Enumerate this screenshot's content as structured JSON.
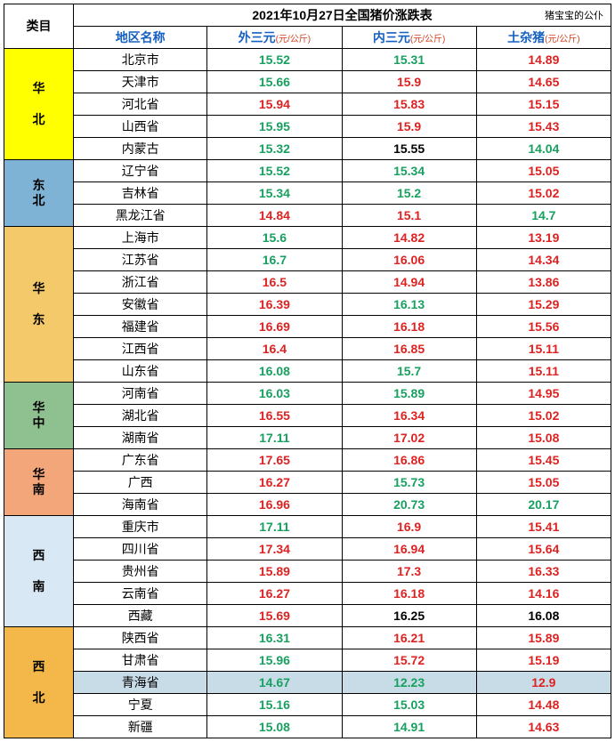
{
  "title": "2021年10月27日全国猪价涨跌表",
  "subtitle": "猪宝宝的公仆",
  "category_header": "类目",
  "columns": [
    "地区名称",
    "外三元",
    "内三元",
    "土杂猪"
  ],
  "unit": "(元/公斤)",
  "colors": {
    "up": "#d22",
    "down": "#18a060",
    "flat": "#000",
    "hdr_blue": "#1560c0"
  },
  "groups": [
    {
      "name": "华北",
      "bg": "#ffff00",
      "rows": [
        {
          "region": "北京市",
          "v": [
            [
              "15.52",
              "down"
            ],
            [
              "15.31",
              "down"
            ],
            [
              "14.89",
              "up"
            ]
          ]
        },
        {
          "region": "天津市",
          "v": [
            [
              "15.66",
              "down"
            ],
            [
              "15.9",
              "up"
            ],
            [
              "14.65",
              "up"
            ]
          ]
        },
        {
          "region": "河北省",
          "v": [
            [
              "15.94",
              "up"
            ],
            [
              "15.83",
              "up"
            ],
            [
              "15.15",
              "up"
            ]
          ]
        },
        {
          "region": "山西省",
          "v": [
            [
              "15.95",
              "down"
            ],
            [
              "15.9",
              "up"
            ],
            [
              "15.43",
              "up"
            ]
          ]
        },
        {
          "region": "内蒙古",
          "v": [
            [
              "15.32",
              "down"
            ],
            [
              "15.55",
              "flat"
            ],
            [
              "14.04",
              "down"
            ]
          ]
        }
      ]
    },
    {
      "name": "东北",
      "bg": "#7fb3d5",
      "rows": [
        {
          "region": "辽宁省",
          "v": [
            [
              "15.52",
              "down"
            ],
            [
              "15.34",
              "down"
            ],
            [
              "15.05",
              "up"
            ]
          ]
        },
        {
          "region": "吉林省",
          "v": [
            [
              "15.34",
              "down"
            ],
            [
              "15.2",
              "down"
            ],
            [
              "15.02",
              "up"
            ]
          ]
        },
        {
          "region": "黑龙江省",
          "v": [
            [
              "14.84",
              "up"
            ],
            [
              "15.1",
              "up"
            ],
            [
              "14.7",
              "down"
            ]
          ]
        }
      ]
    },
    {
      "name": "华东",
      "bg": "#f4c96a",
      "name2": "东",
      "rows": [
        {
          "region": "上海市",
          "v": [
            [
              "15.6",
              "down"
            ],
            [
              "14.82",
              "up"
            ],
            [
              "13.19",
              "up"
            ]
          ]
        },
        {
          "region": "江苏省",
          "v": [
            [
              "16.7",
              "down"
            ],
            [
              "16.06",
              "up"
            ],
            [
              "14.34",
              "up"
            ]
          ]
        },
        {
          "region": "浙江省",
          "v": [
            [
              "16.5",
              "up"
            ],
            [
              "14.94",
              "up"
            ],
            [
              "13.86",
              "up"
            ]
          ]
        },
        {
          "region": "安徽省",
          "v": [
            [
              "16.39",
              "up"
            ],
            [
              "16.13",
              "down"
            ],
            [
              "15.29",
              "up"
            ]
          ]
        },
        {
          "region": "福建省",
          "v": [
            [
              "16.69",
              "up"
            ],
            [
              "16.18",
              "up"
            ],
            [
              "15.56",
              "up"
            ]
          ]
        },
        {
          "region": "江西省",
          "v": [
            [
              "16.4",
              "up"
            ],
            [
              "16.85",
              "up"
            ],
            [
              "15.11",
              "up"
            ]
          ]
        },
        {
          "region": "山东省",
          "v": [
            [
              "16.08",
              "down"
            ],
            [
              "15.7",
              "down"
            ],
            [
              "15.11",
              "up"
            ]
          ]
        }
      ]
    },
    {
      "name": "华中",
      "bg": "#8fc08f",
      "rows": [
        {
          "region": "河南省",
          "v": [
            [
              "16.03",
              "down"
            ],
            [
              "15.89",
              "down"
            ],
            [
              "14.95",
              "up"
            ]
          ]
        },
        {
          "region": "湖北省",
          "v": [
            [
              "16.55",
              "up"
            ],
            [
              "16.34",
              "up"
            ],
            [
              "15.02",
              "up"
            ]
          ]
        },
        {
          "region": "湖南省",
          "v": [
            [
              "17.11",
              "down"
            ],
            [
              "17.02",
              "up"
            ],
            [
              "15.08",
              "up"
            ]
          ]
        }
      ]
    },
    {
      "name": "华南",
      "bg": "#f2a679",
      "rows": [
        {
          "region": "广东省",
          "v": [
            [
              "17.65",
              "up"
            ],
            [
              "16.86",
              "up"
            ],
            [
              "15.45",
              "up"
            ]
          ]
        },
        {
          "region": "广西",
          "v": [
            [
              "16.27",
              "up"
            ],
            [
              "15.73",
              "down"
            ],
            [
              "15.05",
              "up"
            ]
          ]
        },
        {
          "region": "海南省",
          "v": [
            [
              "16.96",
              "up"
            ],
            [
              "20.73",
              "down"
            ],
            [
              "20.17",
              "down"
            ]
          ]
        }
      ]
    },
    {
      "name": "西南",
      "bg": "#d9e8f5",
      "rows": [
        {
          "region": "重庆市",
          "v": [
            [
              "17.11",
              "down"
            ],
            [
              "16.9",
              "up"
            ],
            [
              "15.41",
              "up"
            ]
          ]
        },
        {
          "region": "四川省",
          "v": [
            [
              "17.34",
              "up"
            ],
            [
              "16.94",
              "up"
            ],
            [
              "15.64",
              "up"
            ]
          ]
        },
        {
          "region": "贵州省",
          "v": [
            [
              "15.89",
              "up"
            ],
            [
              "17.3",
              "up"
            ],
            [
              "16.33",
              "up"
            ]
          ]
        },
        {
          "region": "云南省",
          "v": [
            [
              "16.27",
              "up"
            ],
            [
              "16.18",
              "up"
            ],
            [
              "14.16",
              "up"
            ]
          ]
        },
        {
          "region": "西藏",
          "v": [
            [
              "15.69",
              "up"
            ],
            [
              "16.25",
              "flat"
            ],
            [
              "16.08",
              "flat"
            ]
          ]
        }
      ]
    },
    {
      "name": "西北",
      "bg": "#f4b84a",
      "rows": [
        {
          "region": "陕西省",
          "v": [
            [
              "16.31",
              "down"
            ],
            [
              "16.21",
              "up"
            ],
            [
              "15.89",
              "up"
            ]
          ]
        },
        {
          "region": "甘肃省",
          "v": [
            [
              "15.96",
              "down"
            ],
            [
              "15.72",
              "up"
            ],
            [
              "15.19",
              "up"
            ]
          ]
        },
        {
          "region": "青海省",
          "bg": "#c8dce8",
          "v": [
            [
              "14.67",
              "down"
            ],
            [
              "12.23",
              "down"
            ],
            [
              "12.9",
              "up"
            ]
          ]
        },
        {
          "region": "宁夏",
          "v": [
            [
              "15.16",
              "down"
            ],
            [
              "15.03",
              "down"
            ],
            [
              "14.48",
              "up"
            ]
          ]
        },
        {
          "region": "新疆",
          "v": [
            [
              "15.08",
              "down"
            ],
            [
              "14.91",
              "down"
            ],
            [
              "14.63",
              "up"
            ]
          ]
        }
      ]
    }
  ]
}
